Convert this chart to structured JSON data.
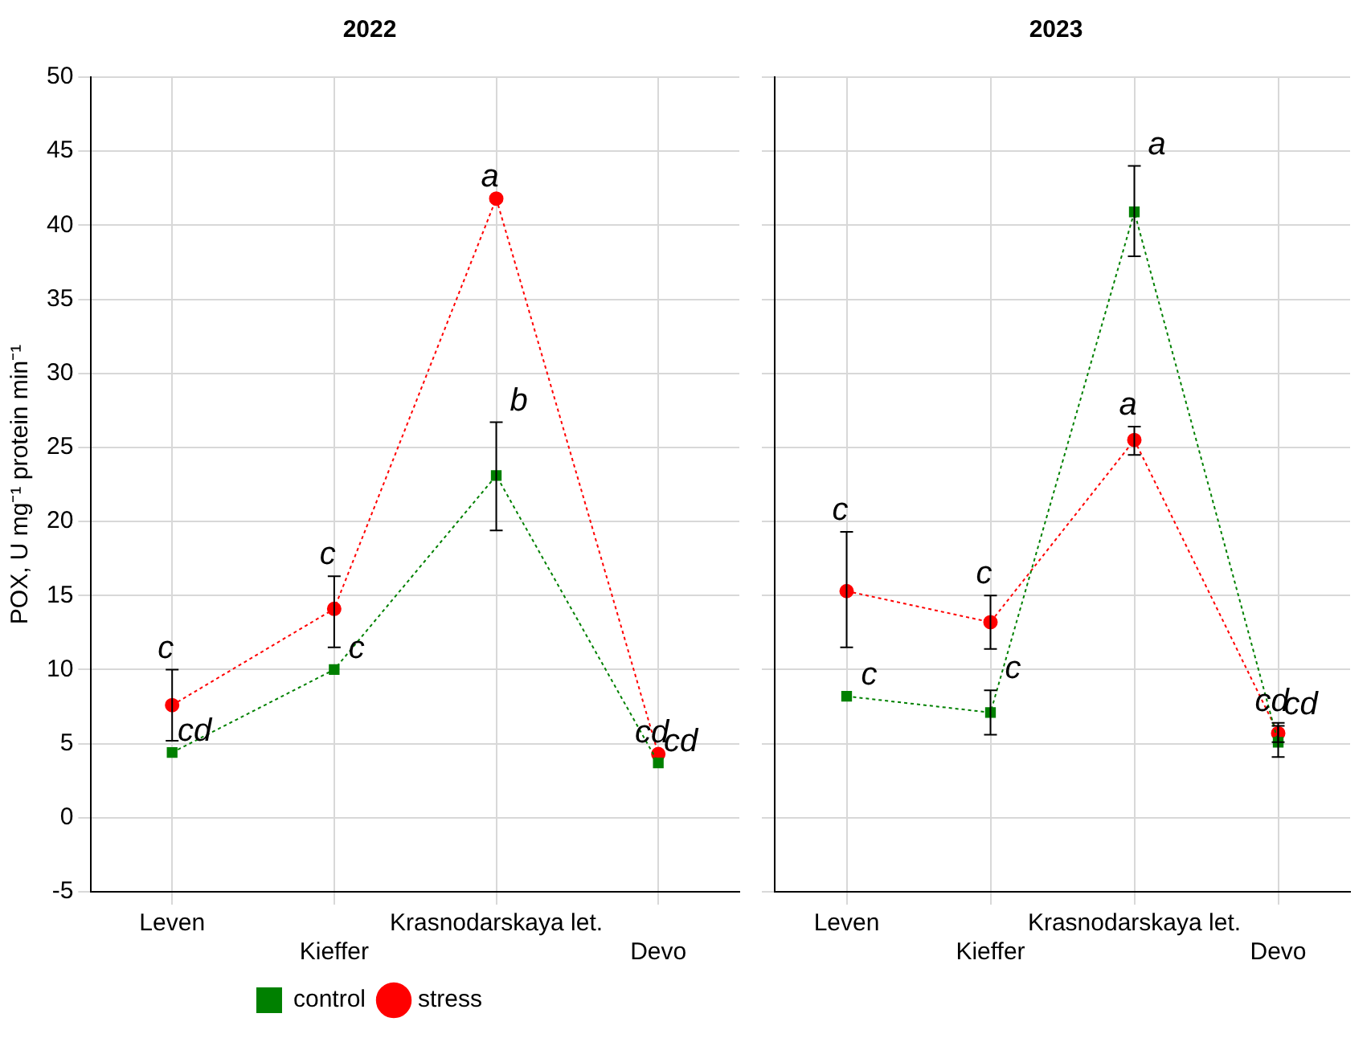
{
  "chart_data": [
    {
      "type": "line",
      "title": "2022",
      "ylabel": "POX, U mg⁻¹ protein min⁻¹",
      "categories": [
        "Leven",
        "Kieffer",
        "Krasnodarskaya let.",
        "Devo"
      ],
      "ylim": [
        -5,
        50
      ],
      "yticks": [
        -5,
        0,
        5,
        10,
        15,
        20,
        25,
        30,
        35,
        40,
        45,
        50
      ],
      "grid": true,
      "legend": "bottom",
      "line_style": "dotted",
      "series": [
        {
          "name": "stress",
          "color": "#ff0000",
          "marker": "circle",
          "values": [
            7.6,
            14.1,
            41.8,
            4.3
          ],
          "errors": [
            [
              5.2,
              10.0
            ],
            [
              11.5,
              16.3
            ],
            null,
            null
          ]
        },
        {
          "name": "control",
          "color": "#008000",
          "marker": "square",
          "values": [
            4.4,
            10.0,
            23.1,
            3.7
          ],
          "errors": [
            null,
            null,
            [
              19.4,
              26.7
            ],
            null
          ]
        }
      ],
      "annotations": [
        {
          "text": "c",
          "x": "Leven",
          "y": 10.0
        },
        {
          "text": "cd",
          "x": "Leven",
          "y": 4.4
        },
        {
          "text": "c",
          "x": "Kieffer",
          "y": 16.3
        },
        {
          "text": "c",
          "x": "Kieffer",
          "y": 10.0
        },
        {
          "text": "a",
          "x": "Krasnodarskaya let.",
          "y": 41.8
        },
        {
          "text": "b",
          "x": "Krasnodarskaya let.",
          "y": 26.7
        },
        {
          "text": "cd",
          "x": "Devo",
          "y": 4.3
        },
        {
          "text": "cd",
          "x": "Devo",
          "y": 3.7
        }
      ]
    },
    {
      "type": "line",
      "title": "2023",
      "categories": [
        "Leven",
        "Kieffer",
        "Krasnodarskaya let.",
        "Devo"
      ],
      "ylim": [
        -5,
        50
      ],
      "yticks": [
        -5,
        0,
        5,
        10,
        15,
        20,
        25,
        30,
        35,
        40,
        45,
        50
      ],
      "grid": true,
      "tick_labels": "x",
      "line_style": "dotted",
      "series": [
        {
          "color": "#ff0000",
          "marker": "circle",
          "values": [
            15.3,
            13.2,
            25.5,
            5.7
          ],
          "errors": [
            [
              11.5,
              19.3
            ],
            [
              11.4,
              15.0
            ],
            [
              24.5,
              26.4
            ],
            [
              5.1,
              6.4
            ]
          ]
        },
        {
          "color": "#008000",
          "marker": "square",
          "values": [
            8.2,
            7.1,
            40.9,
            5.1
          ],
          "errors": [
            null,
            [
              5.6,
              8.6
            ],
            [
              37.9,
              44.0
            ],
            [
              4.1,
              6.2
            ]
          ]
        }
      ],
      "annotations": [
        {
          "text": "c",
          "x": "Leven",
          "y": 19.3
        },
        {
          "text": "c",
          "x": "Leven",
          "y": 8.2
        },
        {
          "text": "c",
          "x": "Kieffer",
          "y": 15.0
        },
        {
          "text": "c",
          "x": "Kieffer",
          "y": 8.6
        },
        {
          "text": "a",
          "x": "Krasnodarskaya let.",
          "y": 26.4
        },
        {
          "text": "a",
          "x": "Krasnodarskaya let.",
          "y": 44.0
        },
        {
          "text": "cd",
          "x": "Devo",
          "y": 6.4
        },
        {
          "text": "cd",
          "x": "Devo",
          "y": 6.2
        }
      ]
    }
  ]
}
